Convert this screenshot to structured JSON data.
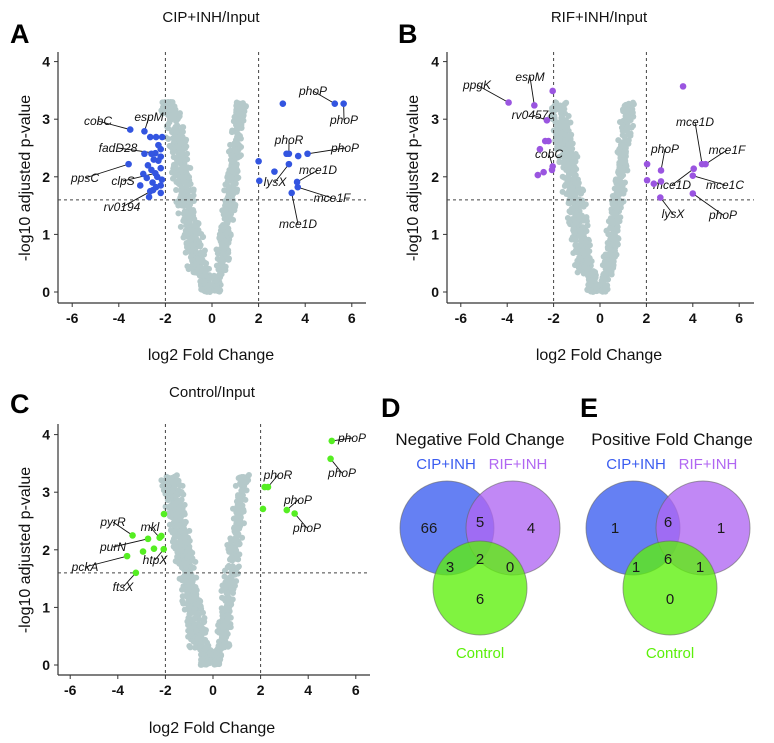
{
  "chart_data": [
    {
      "type": "scatter",
      "panel_letter": "A",
      "title": "CIP+INH/Input",
      "xlabel": "log2 Fold Change",
      "ylabel": "-log10 adjusted p-value",
      "xlim": [
        -6.3,
        6.3
      ],
      "ylim": [
        -0.1,
        4.2
      ],
      "xticks": [
        "-6",
        "-4",
        "-2",
        "0",
        "2",
        "4",
        "6"
      ],
      "yticks": [
        "0",
        "1",
        "2",
        "3",
        "4"
      ],
      "fold_change_thresholds": [
        -2,
        2
      ],
      "pvalue_threshold": 1.6,
      "background_color": "#b5c9ca",
      "highlight_color": "#3355e0",
      "points": [
        {
          "x": 5.27,
          "y": 3.27,
          "label": "phoP"
        },
        {
          "x": 5.65,
          "y": 3.27,
          "label": "phoP"
        },
        {
          "x": 3.3,
          "y": 2.4,
          "label": "phoR"
        },
        {
          "x": 4.1,
          "y": 2.4,
          "label": "phoP"
        },
        {
          "x": 3.3,
          "y": 2.22,
          "label": "lysX"
        },
        {
          "x": 3.65,
          "y": 1.91,
          "label": "mce1D"
        },
        {
          "x": 3.68,
          "y": 1.82,
          "label": "mce1F"
        },
        {
          "x": 3.42,
          "y": 1.72,
          "label": "mce1D"
        },
        {
          "x": -3.51,
          "y": 2.82,
          "label": "cobC"
        },
        {
          "x": -2.9,
          "y": 2.79,
          "label": "espM"
        },
        {
          "x": -2.43,
          "y": 2.41,
          "label": "fadD28"
        },
        {
          "x": -3.58,
          "y": 2.22,
          "label": "ppsC"
        },
        {
          "x": -2.43,
          "y": 2.06,
          "label": "clpS"
        },
        {
          "x": -2.53,
          "y": 1.77,
          "label": "rv0194"
        },
        {
          "x": 3.04,
          "y": 3.27
        },
        {
          "x": 3.2,
          "y": 2.4
        },
        {
          "x": 3.7,
          "y": 2.36
        },
        {
          "x": 2.68,
          "y": 2.09
        },
        {
          "x": 2.0,
          "y": 2.27
        },
        {
          "x": 2.03,
          "y": 1.93
        },
        {
          "x": -2.65,
          "y": 2.69
        },
        {
          "x": -2.4,
          "y": 2.69
        },
        {
          "x": -2.14,
          "y": 2.69
        },
        {
          "x": -3.08,
          "y": 1.85
        },
        {
          "x": -2.2,
          "y": 2.48
        },
        {
          "x": -2.6,
          "y": 2.4
        },
        {
          "x": -2.2,
          "y": 2.35
        },
        {
          "x": -2.3,
          "y": 2.28
        },
        {
          "x": -2.5,
          "y": 2.3
        },
        {
          "x": -2.75,
          "y": 2.2
        },
        {
          "x": -2.2,
          "y": 2.15
        },
        {
          "x": -2.6,
          "y": 2.12
        },
        {
          "x": -2.35,
          "y": 2.0
        },
        {
          "x": -2.15,
          "y": 1.95
        },
        {
          "x": -2.8,
          "y": 1.98
        },
        {
          "x": -2.55,
          "y": 1.9
        },
        {
          "x": -2.2,
          "y": 1.85
        },
        {
          "x": -2.4,
          "y": 1.82
        },
        {
          "x": -2.65,
          "y": 1.75
        },
        {
          "x": -2.2,
          "y": 1.72
        },
        {
          "x": -2.9,
          "y": 2.4
        },
        {
          "x": -2.95,
          "y": 2.05
        },
        {
          "x": -2.3,
          "y": 2.55
        },
        {
          "x": -2.7,
          "y": 1.65
        }
      ]
    },
    {
      "type": "scatter",
      "panel_letter": "B",
      "title": "RIF+INH/Input",
      "xlabel": "log2 Fold Change",
      "ylabel": "-log10 adjusted p-value",
      "xlim": [
        -6.3,
        6.3
      ],
      "ylim": [
        -0.1,
        4.2
      ],
      "xticks": [
        "-6",
        "-4",
        "-2",
        "0",
        "2",
        "4",
        "6"
      ],
      "yticks": [
        "0",
        "1",
        "2",
        "3",
        "4"
      ],
      "fold_change_thresholds": [
        -2,
        2
      ],
      "pvalue_threshold": 1.6,
      "background_color": "#b5c9ca",
      "highlight_color": "#9a55e0",
      "points": [
        {
          "x": -3.94,
          "y": 3.29,
          "label": "ppgK"
        },
        {
          "x": -2.83,
          "y": 3.24,
          "label": "espM"
        },
        {
          "x": -2.29,
          "y": 2.98,
          "label": "rv0457c"
        },
        {
          "x": -2.04,
          "y": 2.18,
          "label": "cobC"
        },
        {
          "x": 2.63,
          "y": 2.11,
          "label": "phoP"
        },
        {
          "x": 4.4,
          "y": 2.22,
          "label": "mce1D"
        },
        {
          "x": 4.55,
          "y": 2.22,
          "label": "mce1F"
        },
        {
          "x": 4.04,
          "y": 2.14,
          "label": "mce1D"
        },
        {
          "x": 4.0,
          "y": 2.02,
          "label": "mce1C"
        },
        {
          "x": 2.6,
          "y": 1.64,
          "label": "lysX"
        },
        {
          "x": 4.0,
          "y": 1.71,
          "label": "phoP"
        },
        {
          "x": -2.04,
          "y": 3.49
        },
        {
          "x": -2.36,
          "y": 2.62
        },
        {
          "x": -2.22,
          "y": 2.62
        },
        {
          "x": -2.59,
          "y": 2.48
        },
        {
          "x": -2.07,
          "y": 2.12
        },
        {
          "x": -2.68,
          "y": 2.03
        },
        {
          "x": -2.43,
          "y": 2.08
        },
        {
          "x": 3.58,
          "y": 3.57
        },
        {
          "x": 2.03,
          "y": 2.22
        },
        {
          "x": 2.03,
          "y": 1.94
        },
        {
          "x": 2.63,
          "y": 1.92
        },
        {
          "x": 2.32,
          "y": 1.88
        }
      ]
    },
    {
      "type": "scatter",
      "panel_letter": "C",
      "title": "Control/Input",
      "xlabel": "log2 Fold Change",
      "ylabel": "-log10 adjusted p-value",
      "xlim": [
        -6.3,
        6.3
      ],
      "ylim": [
        -0.1,
        4.2
      ],
      "xticks": [
        "-6",
        "-4",
        "-2",
        "0",
        "2",
        "4",
        "6"
      ],
      "yticks": [
        "0",
        "1",
        "2",
        "3",
        "4"
      ],
      "fold_change_thresholds": [
        -2,
        2
      ],
      "pvalue_threshold": 1.6,
      "background_color": "#b5c9ca",
      "highlight_color": "#55ee22",
      "points": [
        {
          "x": 4.99,
          "y": 3.89,
          "label": "phoP"
        },
        {
          "x": 4.94,
          "y": 3.58,
          "label": "phoP"
        },
        {
          "x": 2.31,
          "y": 3.09,
          "label": "phoR"
        },
        {
          "x": 3.1,
          "y": 2.69,
          "label": "phoP"
        },
        {
          "x": 3.43,
          "y": 2.63,
          "label": "phoP"
        },
        {
          "x": -3.38,
          "y": 2.25,
          "label": "pyrR"
        },
        {
          "x": -2.24,
          "y": 2.21,
          "label": "mkl"
        },
        {
          "x": -2.73,
          "y": 2.19,
          "label": "purN"
        },
        {
          "x": -2.07,
          "y": 2.01,
          "label": "htpX"
        },
        {
          "x": -3.61,
          "y": 1.89,
          "label": "pckA"
        },
        {
          "x": -3.24,
          "y": 1.6,
          "label": "ftsX"
        },
        {
          "x": 2.17,
          "y": 3.09
        },
        {
          "x": 2.1,
          "y": 2.71
        },
        {
          "x": -2.17,
          "y": 2.24
        },
        {
          "x": -2.06,
          "y": 2.62
        },
        {
          "x": -2.48,
          "y": 2.02
        },
        {
          "x": -2.94,
          "y": 1.97
        }
      ]
    },
    {
      "type": "venn",
      "panel_letter": "D",
      "title": "Negative Fold Change",
      "sets": [
        {
          "name": "CIP+INH",
          "color": "#3a5cf0"
        },
        {
          "name": "RIF+INH",
          "color": "#b066f2"
        },
        {
          "name": "Control",
          "color": "#5cf00a"
        }
      ],
      "regions": {
        "CIP_only": "66",
        "RIF_only": "4",
        "Control_only": "6",
        "CIP_RIF": "5",
        "CIP_Control": "3",
        "RIF_Control": "0",
        "all": "2"
      }
    },
    {
      "type": "venn",
      "panel_letter": "E",
      "title": "Positive Fold Change",
      "sets": [
        {
          "name": "CIP+INH",
          "color": "#3a5cf0"
        },
        {
          "name": "RIF+INH",
          "color": "#b066f2"
        },
        {
          "name": "Control",
          "color": "#5cf00a"
        }
      ],
      "regions": {
        "CIP_only": "1",
        "RIF_only": "1",
        "Control_only": "0",
        "CIP_RIF": "6",
        "CIP_Control": "1",
        "RIF_Control": "1",
        "all": "6"
      }
    }
  ]
}
